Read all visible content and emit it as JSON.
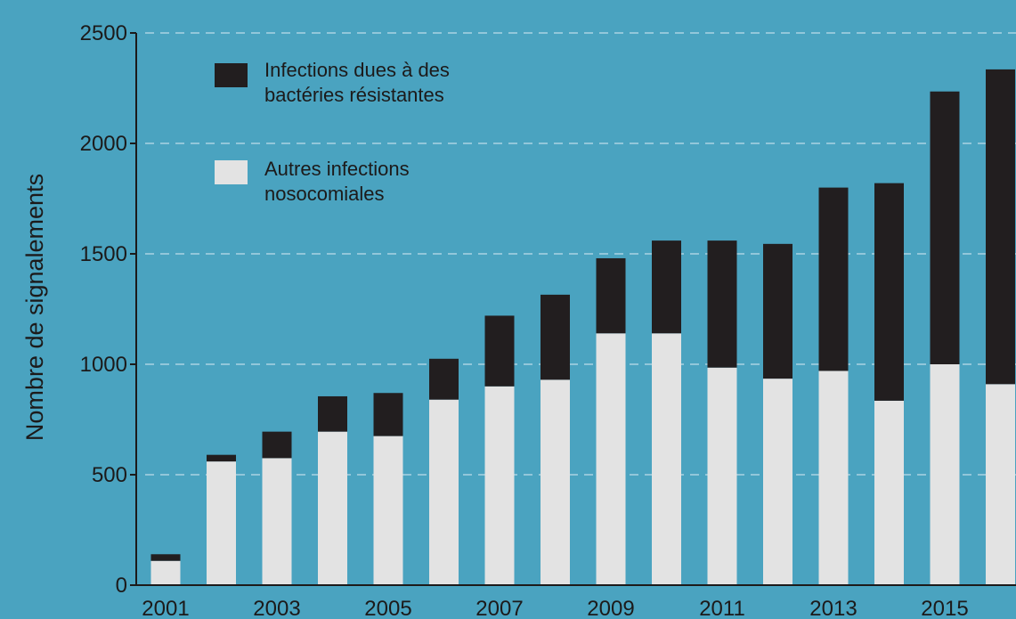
{
  "chart_data": {
    "type": "bar",
    "stacked": true,
    "ylabel": "Nombre de signalements",
    "xlabel": "",
    "ylim": [
      0,
      2500
    ],
    "yticks": [
      0,
      500,
      1000,
      1500,
      2000,
      2500
    ],
    "grid": "horizontal dashed",
    "legend_position": "top-left",
    "categories": [
      "2001",
      "2002",
      "2003",
      "2004",
      "2005",
      "2006",
      "2007",
      "2008",
      "2009",
      "2010",
      "2011",
      "2012",
      "2013",
      "2014",
      "2015",
      "2016"
    ],
    "xtick_labels": [
      "2001",
      "2003",
      "2005",
      "2007",
      "2009",
      "2011",
      "2013",
      "2015"
    ],
    "series": [
      {
        "name": "Autres infections nosocomiales",
        "name_lines": [
          "Autres infections",
          "nosocomiales"
        ],
        "color": "#e3e3e3",
        "values": [
          110,
          560,
          575,
          695,
          675,
          840,
          900,
          930,
          1140,
          1140,
          985,
          935,
          970,
          835,
          1000,
          910
        ]
      },
      {
        "name": "Infections dues à des bactéries résistantes",
        "name_lines": [
          "Infections dues à des",
          "bactéries résistantes"
        ],
        "color": "#221e1f",
        "values": [
          30,
          30,
          120,
          160,
          195,
          185,
          320,
          385,
          340,
          420,
          575,
          610,
          830,
          985,
          1235,
          1425
        ]
      }
    ]
  },
  "colors": {
    "background": "#4aa3c0",
    "text": "#1c1a1a",
    "gridline": "#c9e4ee"
  }
}
